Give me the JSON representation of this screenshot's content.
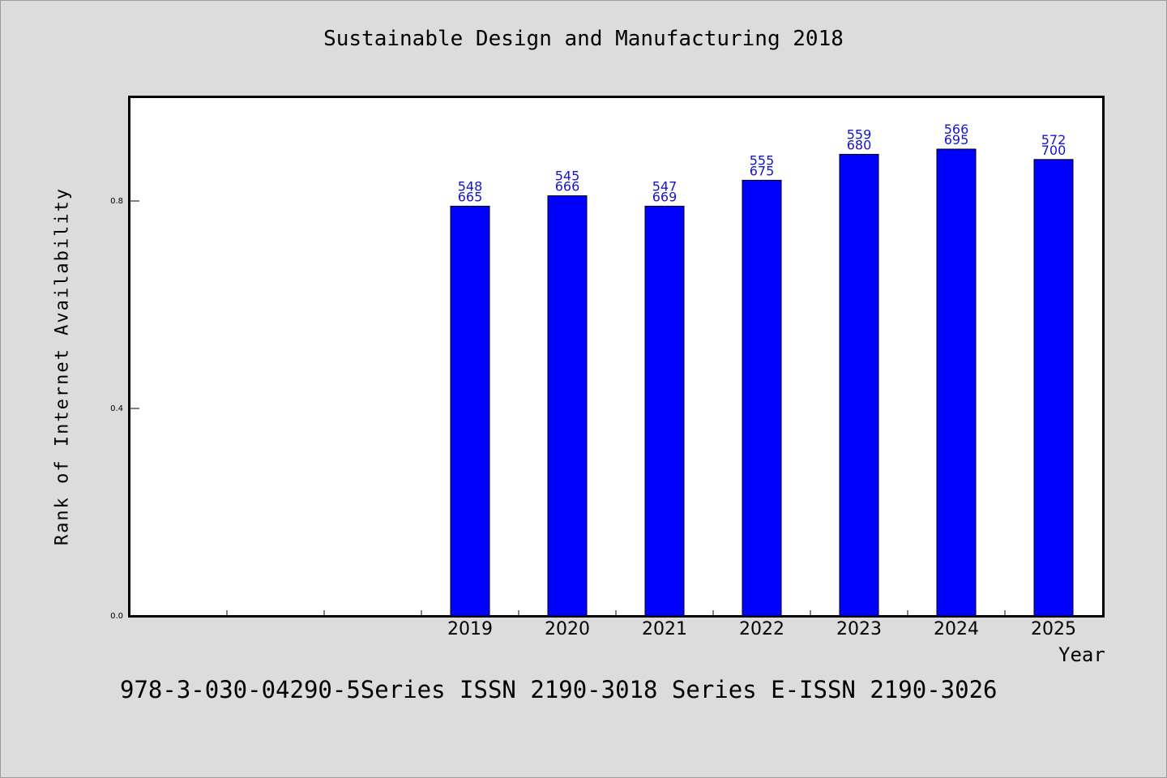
{
  "chart_data": {
    "type": "bar",
    "title": "Sustainable Design and Manufacturing 2018",
    "xlabel": "Year",
    "ylabel": "Rank of Internet Availability",
    "categories": [
      "",
      "",
      "",
      "2019",
      "2020",
      "2021",
      "2022",
      "2023",
      "2024",
      "2025"
    ],
    "series": [
      {
        "values": [
          null,
          null,
          null,
          0.79,
          0.81,
          0.79,
          0.84,
          0.89,
          0.9,
          0.88
        ],
        "color": "#0000ff"
      }
    ],
    "bar_labels": [
      null,
      null,
      null,
      [
        "548",
        "665"
      ],
      [
        "545",
        "666"
      ],
      [
        "547",
        "669"
      ],
      [
        "555",
        "675"
      ],
      [
        "559",
        "680"
      ],
      [
        "566",
        "695"
      ],
      [
        "572",
        "700"
      ]
    ],
    "yticks": [
      {
        "value": 0.0,
        "label": "0.0"
      },
      {
        "value": 0.4,
        "label": "0.4"
      },
      {
        "value": 0.8,
        "label": "0.8"
      }
    ],
    "ylim": [
      0,
      1.0
    ],
    "grid": false,
    "legend": false,
    "colors": {
      "bar": "#0000ff",
      "data_label": "#1515c8",
      "background": "#dcdcdc",
      "plot_background": "#ffffff"
    }
  },
  "footer": "978-3-030-04290-5Series ISSN 2190-3018 Series E-ISSN 2190-3026"
}
